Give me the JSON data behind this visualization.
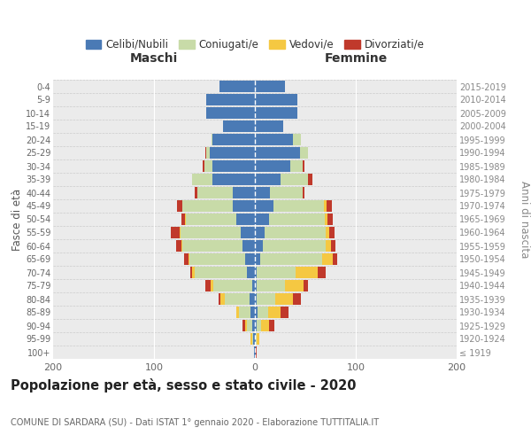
{
  "age_groups": [
    "100+",
    "95-99",
    "90-94",
    "85-89",
    "80-84",
    "75-79",
    "70-74",
    "65-69",
    "60-64",
    "55-59",
    "50-54",
    "45-49",
    "40-44",
    "35-39",
    "30-34",
    "25-29",
    "20-24",
    "15-19",
    "10-14",
    "5-9",
    "0-4"
  ],
  "birth_years": [
    "≤ 1919",
    "1920-1924",
    "1925-1929",
    "1930-1934",
    "1935-1939",
    "1940-1944",
    "1945-1949",
    "1950-1954",
    "1955-1959",
    "1960-1964",
    "1965-1969",
    "1970-1974",
    "1975-1979",
    "1980-1984",
    "1985-1989",
    "1990-1994",
    "1995-1999",
    "2000-2004",
    "2005-2009",
    "2010-2014",
    "2015-2019"
  ],
  "maschi": {
    "celibi": [
      1,
      2,
      3,
      4,
      5,
      3,
      8,
      10,
      12,
      14,
      18,
      22,
      22,
      42,
      42,
      45,
      42,
      32,
      48,
      48,
      35
    ],
    "coniugati": [
      0,
      1,
      5,
      12,
      25,
      38,
      52,
      55,
      60,
      60,
      50,
      50,
      35,
      20,
      8,
      3,
      1,
      0,
      0,
      0,
      0
    ],
    "vedovi": [
      0,
      1,
      2,
      2,
      4,
      3,
      2,
      1,
      1,
      1,
      1,
      0,
      0,
      0,
      0,
      0,
      0,
      0,
      0,
      0,
      0
    ],
    "divorziati": [
      0,
      0,
      2,
      0,
      2,
      5,
      2,
      4,
      5,
      8,
      4,
      5,
      3,
      0,
      2,
      1,
      0,
      0,
      0,
      0,
      0
    ]
  },
  "femmine": {
    "nubili": [
      1,
      1,
      2,
      3,
      2,
      2,
      2,
      5,
      8,
      10,
      14,
      18,
      15,
      25,
      35,
      45,
      38,
      28,
      42,
      42,
      30
    ],
    "coniugate": [
      0,
      1,
      4,
      10,
      18,
      28,
      38,
      62,
      62,
      60,
      55,
      50,
      32,
      28,
      12,
      8,
      8,
      0,
      0,
      0,
      0
    ],
    "vedove": [
      0,
      2,
      8,
      12,
      18,
      18,
      22,
      10,
      5,
      4,
      3,
      3,
      0,
      0,
      0,
      0,
      0,
      0,
      0,
      0,
      0
    ],
    "divorziate": [
      1,
      0,
      5,
      8,
      8,
      5,
      8,
      5,
      5,
      5,
      5,
      5,
      2,
      4,
      2,
      0,
      0,
      0,
      0,
      0,
      0
    ]
  },
  "colors": {
    "celibi": "#4a7ab5",
    "coniugati": "#c8dba8",
    "vedovi": "#f5c842",
    "divorziati": "#c0392b"
  },
  "xlim": 200,
  "title": "Popolazione per età, sesso e stato civile - 2020",
  "subtitle": "COMUNE DI SARDARA (SU) - Dati ISTAT 1° gennaio 2020 - Elaborazione TUTTITALIA.IT",
  "xlabel_left": "Maschi",
  "xlabel_right": "Femmine",
  "ylabel_left": "Fasce di età",
  "ylabel_right": "Anni di nascita",
  "legend_labels": [
    "Celibi/Nubili",
    "Coniugati/e",
    "Vedovi/e",
    "Divorziati/e"
  ],
  "bg_color": "#ebebeb",
  "fig_bg": "#ffffff"
}
